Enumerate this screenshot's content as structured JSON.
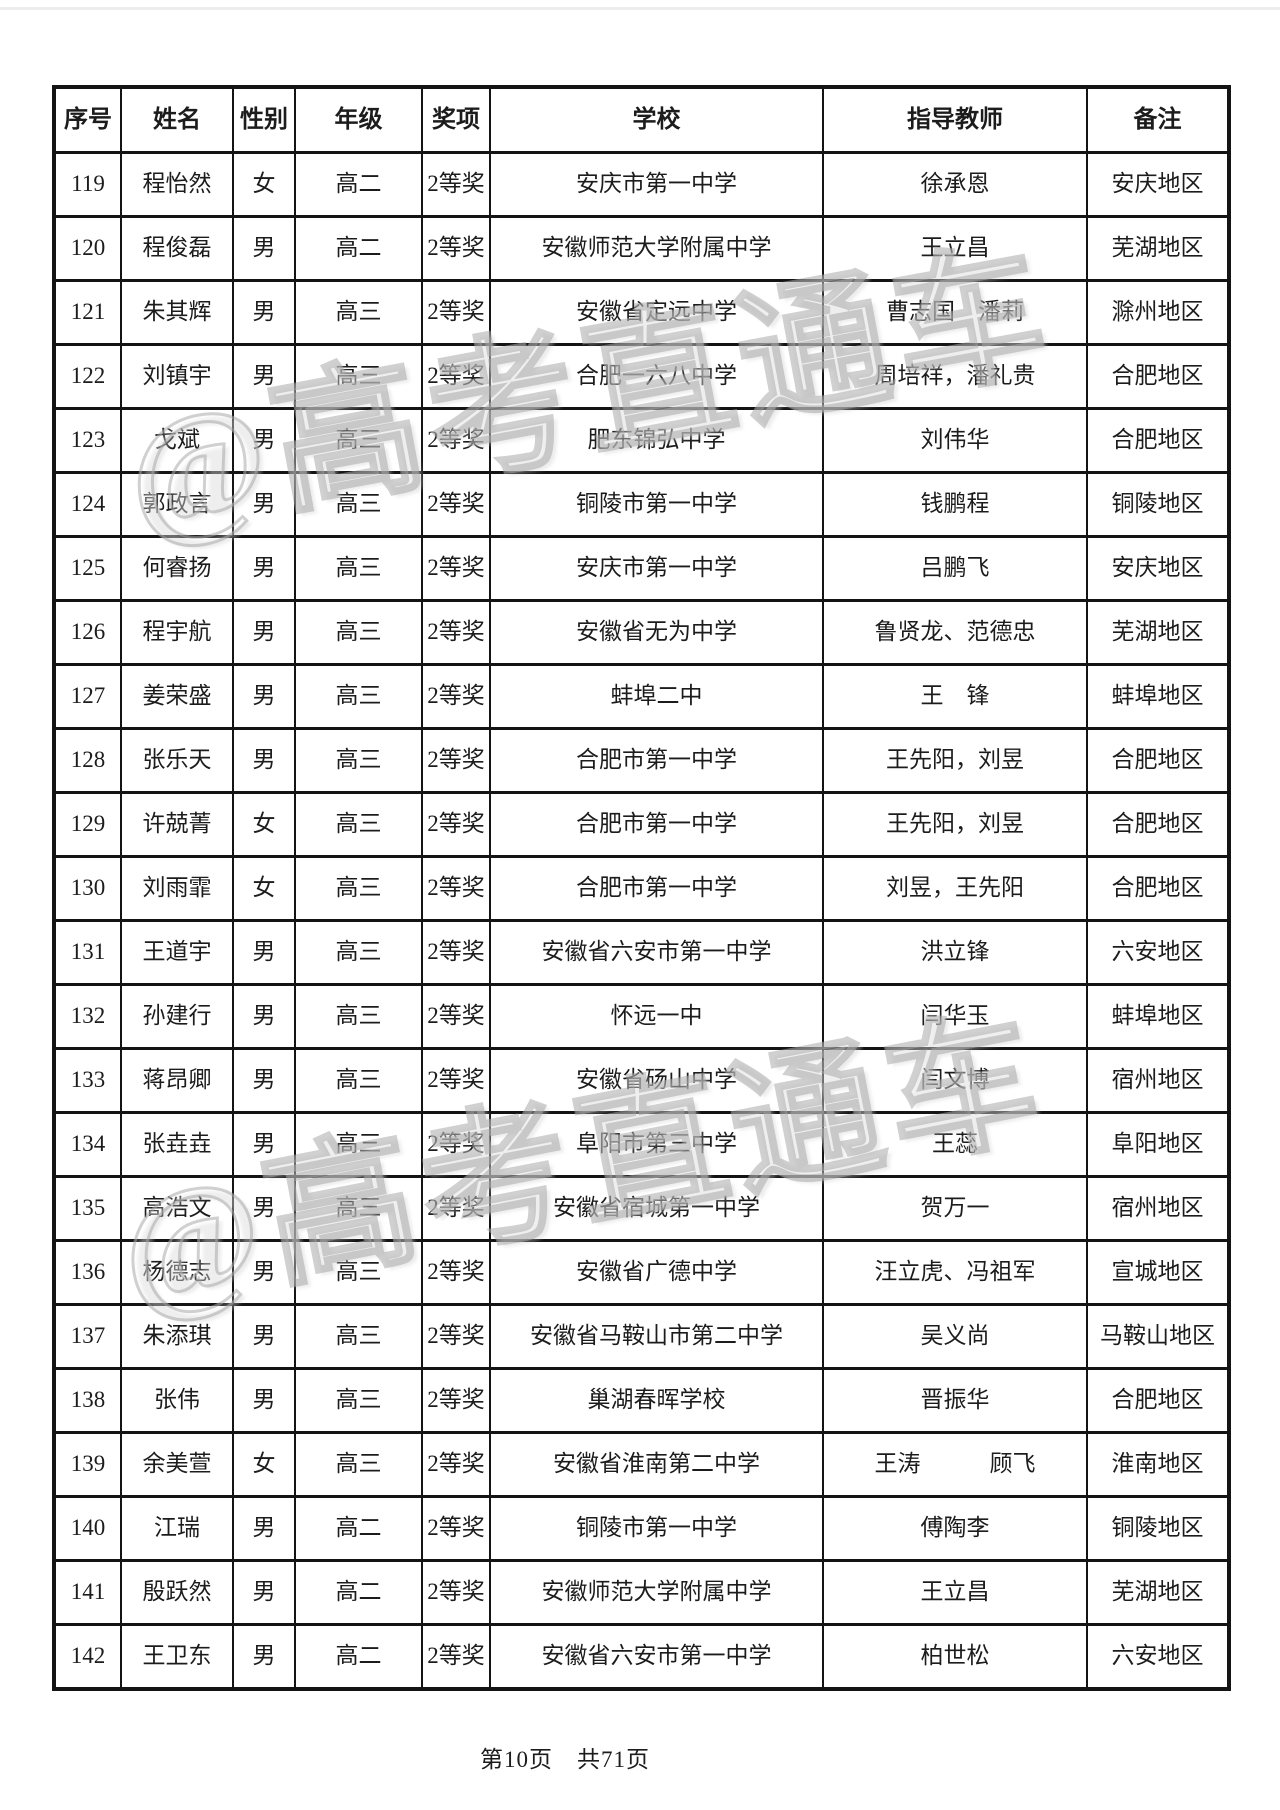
{
  "page": {
    "footer": "第10页　共71页",
    "watermark": "@高考直通车"
  },
  "table": {
    "columns": [
      {
        "key": "no",
        "label": "序号"
      },
      {
        "key": "name",
        "label": "姓名"
      },
      {
        "key": "gender",
        "label": "性别"
      },
      {
        "key": "grade",
        "label": "年级"
      },
      {
        "key": "award",
        "label": "奖项"
      },
      {
        "key": "school",
        "label": "学校"
      },
      {
        "key": "teacher",
        "label": "指导教师"
      },
      {
        "key": "remark",
        "label": "备注"
      }
    ],
    "rows": [
      {
        "no": "119",
        "name": "程怡然",
        "gender": "女",
        "grade": "高二",
        "award": "2等奖",
        "school": "安庆市第一中学",
        "teacher": "徐承恩",
        "remark": "安庆地区"
      },
      {
        "no": "120",
        "name": "程俊磊",
        "gender": "男",
        "grade": "高二",
        "award": "2等奖",
        "school": "安徽师范大学附属中学",
        "teacher": "王立昌",
        "remark": "芜湖地区"
      },
      {
        "no": "121",
        "name": "朱其辉",
        "gender": "男",
        "grade": "高三",
        "award": "2等奖",
        "school": "安徽省定远中学",
        "teacher": "曹志国　潘莉",
        "remark": "滁州地区"
      },
      {
        "no": "122",
        "name": "刘镇宇",
        "gender": "男",
        "grade": "高三",
        "award": "2等奖",
        "school": "合肥一六八中学",
        "teacher": "周培祥，潘礼贵",
        "remark": "合肥地区"
      },
      {
        "no": "123",
        "name": "戈斌",
        "gender": "男",
        "grade": "高三",
        "award": "2等奖",
        "school": "肥东锦弘中学",
        "teacher": "刘伟华",
        "remark": "合肥地区"
      },
      {
        "no": "124",
        "name": "郭政言",
        "gender": "男",
        "grade": "高三",
        "award": "2等奖",
        "school": "铜陵市第一中学",
        "teacher": "钱鹏程",
        "remark": "铜陵地区"
      },
      {
        "no": "125",
        "name": "何睿扬",
        "gender": "男",
        "grade": "高三",
        "award": "2等奖",
        "school": "安庆市第一中学",
        "teacher": "吕鹏飞",
        "remark": "安庆地区"
      },
      {
        "no": "126",
        "name": "程宇航",
        "gender": "男",
        "grade": "高三",
        "award": "2等奖",
        "school": "安徽省无为中学",
        "teacher": "鲁贤龙、范德忠",
        "remark": "芜湖地区"
      },
      {
        "no": "127",
        "name": "姜荣盛",
        "gender": "男",
        "grade": "高三",
        "award": "2等奖",
        "school": "蚌埠二中",
        "teacher": "王　锋",
        "remark": "蚌埠地区"
      },
      {
        "no": "128",
        "name": "张乐天",
        "gender": "男",
        "grade": "高三",
        "award": "2等奖",
        "school": "合肥市第一中学",
        "teacher": "王先阳，刘昱",
        "remark": "合肥地区"
      },
      {
        "no": "129",
        "name": "许兢菁",
        "gender": "女",
        "grade": "高三",
        "award": "2等奖",
        "school": "合肥市第一中学",
        "teacher": "王先阳，刘昱",
        "remark": "合肥地区"
      },
      {
        "no": "130",
        "name": "刘雨霏",
        "gender": "女",
        "grade": "高三",
        "award": "2等奖",
        "school": "合肥市第一中学",
        "teacher": "刘昱，王先阳",
        "remark": "合肥地区"
      },
      {
        "no": "131",
        "name": "王道宇",
        "gender": "男",
        "grade": "高三",
        "award": "2等奖",
        "school": "安徽省六安市第一中学",
        "teacher": "洪立锋",
        "remark": "六安地区"
      },
      {
        "no": "132",
        "name": "孙建行",
        "gender": "男",
        "grade": "高三",
        "award": "2等奖",
        "school": "怀远一中",
        "teacher": "闫华玉",
        "remark": "蚌埠地区"
      },
      {
        "no": "133",
        "name": "蒋昂卿",
        "gender": "男",
        "grade": "高三",
        "award": "2等奖",
        "school": "安徽省砀山中学",
        "teacher": "闫文博",
        "remark": "宿州地区"
      },
      {
        "no": "134",
        "name": "张垚垚",
        "gender": "男",
        "grade": "高三",
        "award": "2等奖",
        "school": "阜阳市第三中学",
        "teacher": "王蕊",
        "remark": "阜阳地区"
      },
      {
        "no": "135",
        "name": "高浩文",
        "gender": "男",
        "grade": "高三",
        "award": "2等奖",
        "school": "安徽省宿城第一中学",
        "teacher": "贺万一",
        "remark": "宿州地区"
      },
      {
        "no": "136",
        "name": "杨德志",
        "gender": "男",
        "grade": "高三",
        "award": "2等奖",
        "school": "安徽省广德中学",
        "teacher": "汪立虎、冯祖军",
        "remark": "宣城地区"
      },
      {
        "no": "137",
        "name": "朱添琪",
        "gender": "男",
        "grade": "高三",
        "award": "2等奖",
        "school": "安徽省马鞍山市第二中学",
        "teacher": "吴义尚",
        "remark": "马鞍山地区"
      },
      {
        "no": "138",
        "name": "张伟",
        "gender": "男",
        "grade": "高三",
        "award": "2等奖",
        "school": "巢湖春晖学校",
        "teacher": "晋振华",
        "remark": "合肥地区"
      },
      {
        "no": "139",
        "name": "余美萱",
        "gender": "女",
        "grade": "高三",
        "award": "2等奖",
        "school": "安徽省淮南第二中学",
        "teacher": "王涛　　　顾飞",
        "remark": "淮南地区"
      },
      {
        "no": "140",
        "name": "江瑞",
        "gender": "男",
        "grade": "高二",
        "award": "2等奖",
        "school": "铜陵市第一中学",
        "teacher": "傅陶李",
        "remark": "铜陵地区"
      },
      {
        "no": "141",
        "name": "殷跃然",
        "gender": "男",
        "grade": "高二",
        "award": "2等奖",
        "school": "安徽师范大学附属中学",
        "teacher": "王立昌",
        "remark": "芜湖地区"
      },
      {
        "no": "142",
        "name": "王卫东",
        "gender": "男",
        "grade": "高二",
        "award": "2等奖",
        "school": "安徽省六安市第一中学",
        "teacher": "柏世松",
        "remark": "六安地区"
      }
    ]
  }
}
